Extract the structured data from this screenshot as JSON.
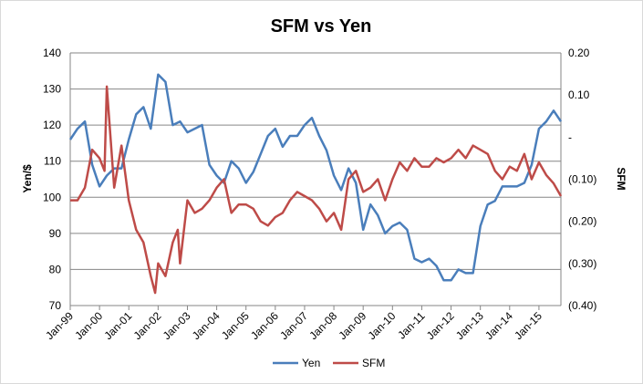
{
  "chart_data": {
    "type": "line",
    "title": "SFM vs Yen",
    "ylabel_left": "Yen/$",
    "ylabel_right": "SFM",
    "ylim_left": [
      70,
      140
    ],
    "yticks_left": [
      "70",
      "80",
      "90",
      "100",
      "110",
      "120",
      "130",
      "140"
    ],
    "ylim_right": [
      -0.4,
      0.2
    ],
    "yticks_right": [
      "(0.40)",
      "(0.30)",
      "(0.20)",
      "(0.10)",
      "-",
      "0.10",
      "0.20"
    ],
    "x_range": [
      1999.0,
      2015.75
    ],
    "xticks": [
      "Jan-99",
      "Jan-00",
      "Jan-01",
      "Jan-02",
      "Jan-03",
      "Jan-04",
      "Jan-05",
      "Jan-06",
      "Jan-07",
      "Jan-08",
      "Jan-09",
      "Jan-10",
      "Jan-11",
      "Jan-12",
      "Jan-13",
      "Jan-14",
      "Jan-15"
    ],
    "grid": true,
    "legend_position": "bottom",
    "series": [
      {
        "name": "Yen",
        "axis": "left",
        "color": "#4a7ebb",
        "x": [
          1999.0,
          1999.25,
          1999.5,
          1999.75,
          2000.0,
          2000.25,
          2000.5,
          2000.75,
          2001.0,
          2001.25,
          2001.5,
          2001.75,
          2002.0,
          2002.25,
          2002.5,
          2002.75,
          2003.0,
          2003.25,
          2003.5,
          2003.75,
          2004.0,
          2004.25,
          2004.5,
          2004.75,
          2005.0,
          2005.25,
          2005.5,
          2005.75,
          2006.0,
          2006.25,
          2006.5,
          2006.75,
          2007.0,
          2007.25,
          2007.5,
          2007.75,
          2008.0,
          2008.25,
          2008.5,
          2008.75,
          2009.0,
          2009.25,
          2009.5,
          2009.75,
          2010.0,
          2010.25,
          2010.5,
          2010.75,
          2011.0,
          2011.25,
          2011.5,
          2011.75,
          2012.0,
          2012.25,
          2012.5,
          2012.75,
          2013.0,
          2013.25,
          2013.5,
          2013.75,
          2014.0,
          2014.25,
          2014.5,
          2014.75,
          2015.0,
          2015.25,
          2015.5,
          2015.75
        ],
        "values": [
          116,
          119,
          121,
          109,
          103,
          106,
          108,
          108,
          116,
          123,
          125,
          119,
          134,
          132,
          120,
          121,
          118,
          119,
          120,
          109,
          106,
          104,
          110,
          108,
          104,
          107,
          112,
          117,
          119,
          114,
          117,
          117,
          120,
          122,
          117,
          113,
          106,
          102,
          108,
          104,
          91,
          98,
          95,
          90,
          92,
          93,
          91,
          83,
          82,
          83,
          81,
          77,
          77,
          80,
          79,
          79,
          92,
          98,
          99,
          103,
          103,
          103,
          104,
          109,
          119,
          121,
          124,
          121
        ]
      },
      {
        "name": "SFM",
        "axis": "right",
        "color": "#be4b48",
        "x": [
          1999.0,
          1999.25,
          1999.5,
          1999.75,
          2000.0,
          2000.17,
          2000.25,
          2000.5,
          2000.75,
          2001.0,
          2001.25,
          2001.5,
          2001.75,
          2001.9,
          2002.0,
          2002.25,
          2002.5,
          2002.67,
          2002.75,
          2003.0,
          2003.25,
          2003.5,
          2003.75,
          2004.0,
          2004.25,
          2004.5,
          2004.75,
          2005.0,
          2005.25,
          2005.5,
          2005.75,
          2006.0,
          2006.25,
          2006.5,
          2006.75,
          2007.0,
          2007.25,
          2007.5,
          2007.75,
          2008.0,
          2008.25,
          2008.5,
          2008.75,
          2009.0,
          2009.25,
          2009.5,
          2009.75,
          2010.0,
          2010.25,
          2010.5,
          2010.75,
          2011.0,
          2011.25,
          2011.5,
          2011.75,
          2012.0,
          2012.25,
          2012.5,
          2012.75,
          2013.0,
          2013.25,
          2013.5,
          2013.75,
          2014.0,
          2014.25,
          2014.5,
          2014.75,
          2015.0,
          2015.25,
          2015.5,
          2015.75
        ],
        "values": [
          -0.15,
          -0.15,
          -0.12,
          -0.03,
          -0.05,
          -0.08,
          0.12,
          -0.12,
          -0.02,
          -0.15,
          -0.22,
          -0.25,
          -0.33,
          -0.37,
          -0.3,
          -0.33,
          -0.25,
          -0.22,
          -0.3,
          -0.15,
          -0.18,
          -0.17,
          -0.15,
          -0.12,
          -0.1,
          -0.18,
          -0.16,
          -0.16,
          -0.17,
          -0.2,
          -0.21,
          -0.19,
          -0.18,
          -0.15,
          -0.13,
          -0.14,
          -0.15,
          -0.17,
          -0.2,
          -0.18,
          -0.22,
          -0.1,
          -0.08,
          -0.13,
          -0.12,
          -0.1,
          -0.15,
          -0.1,
          -0.06,
          -0.08,
          -0.05,
          -0.07,
          -0.07,
          -0.05,
          -0.06,
          -0.05,
          -0.03,
          -0.05,
          -0.02,
          -0.03,
          -0.04,
          -0.08,
          -0.1,
          -0.07,
          -0.08,
          -0.04,
          -0.1,
          -0.06,
          -0.09,
          -0.11,
          -0.14
        ]
      }
    ]
  }
}
